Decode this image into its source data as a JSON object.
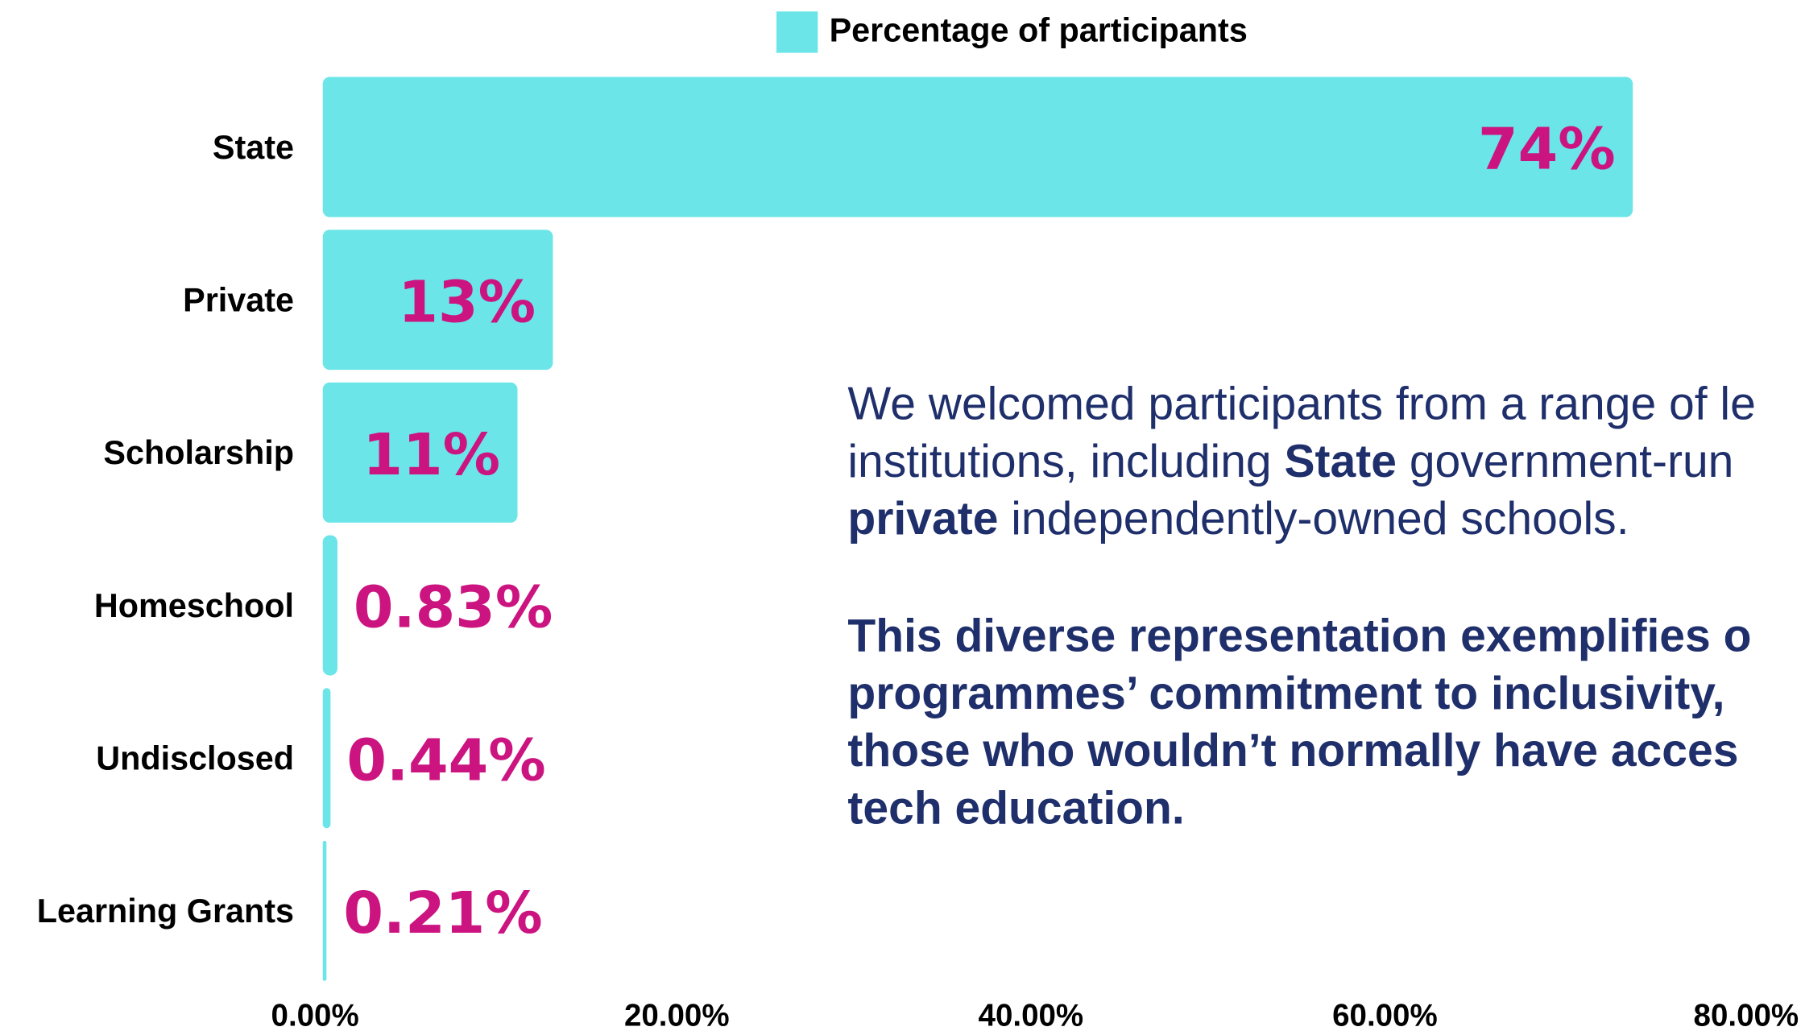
{
  "chart_data": {
    "type": "bar",
    "orientation": "horizontal",
    "categories": [
      "State",
      "Private",
      "Scholarship",
      "Homeschool",
      "Undisclosed",
      "Learning Grants"
    ],
    "series": [
      {
        "name": "Percentage of participants",
        "color": "#6be5e8",
        "values": [
          74,
          13,
          11,
          0.83,
          0.44,
          0.21
        ],
        "value_labels": [
          "74%",
          "13%",
          "11%",
          "0.83%",
          "0.44%",
          "0.21%"
        ]
      }
    ],
    "xlim": [
      0,
      80
    ],
    "xticks": [
      {
        "value": 0,
        "label": "0.00%"
      },
      {
        "value": 20,
        "label": "20.00%"
      },
      {
        "value": 40,
        "label": "40.00%"
      },
      {
        "value": 60,
        "label": "60.00%"
      },
      {
        "value": 80,
        "label": "80.00%"
      }
    ],
    "legend": "top",
    "label_color": "#cc1480",
    "annotations": [
      [
        [
          "We welcomed participants from a range of le",
          false
        ]
      ],
      [
        [
          "institutions, including ",
          false
        ],
        [
          "State",
          true
        ],
        [
          " government-run",
          false
        ]
      ],
      [
        [
          "private",
          true
        ],
        [
          " independently-owned schools.",
          false
        ]
      ],
      [
        [
          "This diverse representation exemplifies o",
          true
        ]
      ],
      [
        [
          "programmes’ commitment to inclusivity,",
          true
        ]
      ],
      [
        [
          "those who wouldn’t normally have acces",
          true
        ]
      ],
      [
        [
          "tech education.",
          true
        ]
      ]
    ]
  }
}
